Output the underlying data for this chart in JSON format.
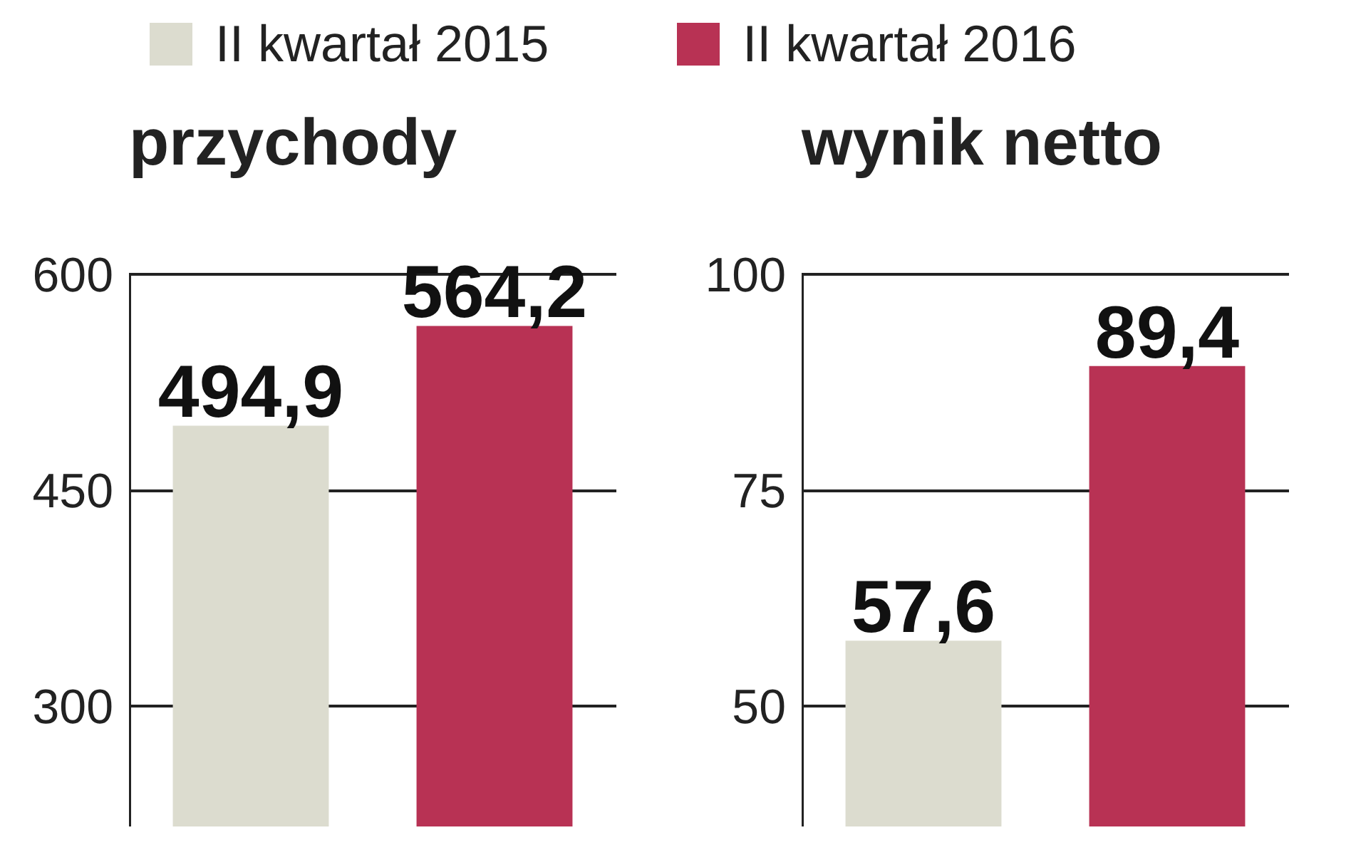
{
  "chart_data": [
    {
      "type": "bar",
      "title": "przychody",
      "categories": [
        null
      ],
      "series": [
        {
          "name": "II kwartał 2015",
          "color": "#dcdccf",
          "values": [
            494.9
          ],
          "value_labels": [
            "494,9"
          ]
        },
        {
          "name": "II kwartał 2016",
          "color": "#b83254",
          "values": [
            564.2
          ],
          "value_labels": [
            "564,2"
          ]
        }
      ],
      "ylim": [
        216,
        600
      ],
      "yticks": [
        300,
        450,
        600
      ],
      "grid": "y",
      "legend": "top",
      "tick_labels": "y"
    },
    {
      "type": "bar",
      "title": "wynik netto",
      "categories": [
        null
      ],
      "series": [
        {
          "color": "#dcdccf",
          "values": [
            57.6
          ],
          "value_labels": [
            "57,6"
          ]
        },
        {
          "color": "#b83254",
          "values": [
            89.4
          ],
          "value_labels": [
            "89,4"
          ]
        }
      ],
      "ylim": [
        36,
        100
      ],
      "yticks": [
        50,
        75,
        100
      ],
      "grid": "y",
      "tick_labels": "y"
    }
  ]
}
